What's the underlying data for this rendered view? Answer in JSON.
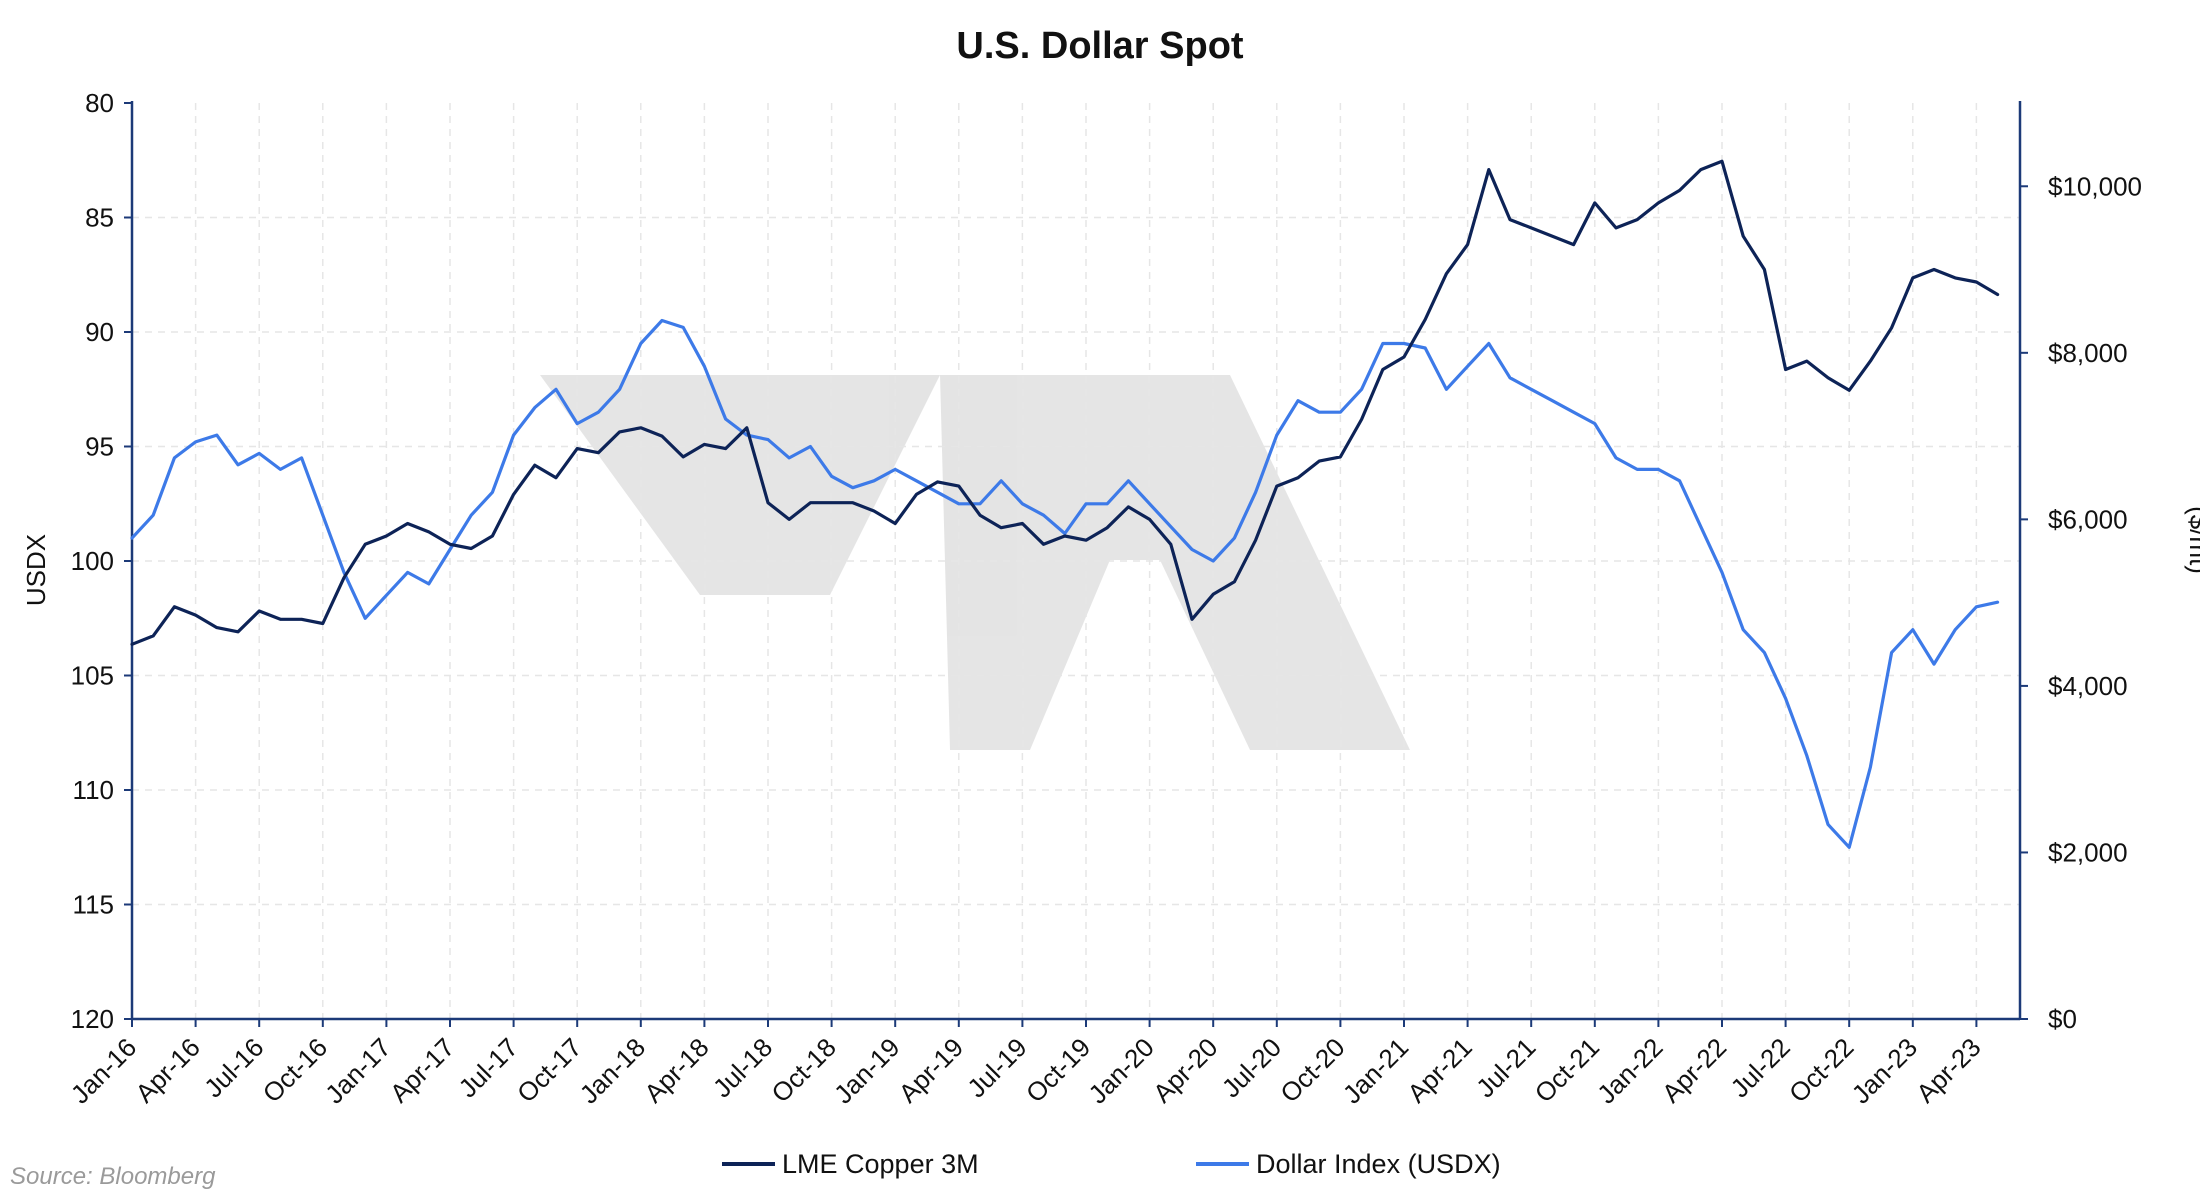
{
  "chart_data": {
    "type": "line",
    "title": "U.S. Dollar Spot",
    "ylabel": "USDX",
    "y2label": "($/mt)",
    "source": "Source: Bloomberg",
    "x_start": "2016-01",
    "x_end": "2023-05",
    "xticks": [
      "Jan-16",
      "Apr-16",
      "Jul-16",
      "Oct-16",
      "Jan-17",
      "Apr-17",
      "Jul-17",
      "Oct-17",
      "Jan-18",
      "Apr-18",
      "Jul-18",
      "Oct-18",
      "Jan-19",
      "Apr-19",
      "Jul-19",
      "Oct-19",
      "Jan-20",
      "Apr-20",
      "Jul-20",
      "Oct-20",
      "Jan-21",
      "Apr-21",
      "Jul-21",
      "Oct-21",
      "Jan-22",
      "Apr-22",
      "Jul-22",
      "Oct-22",
      "Jan-23",
      "Apr-23"
    ],
    "y_left": {
      "min": 80,
      "max": 120,
      "inverted": true,
      "ticks": [
        "80",
        "85",
        "90",
        "95",
        "100",
        "105",
        "110",
        "115",
        "120"
      ]
    },
    "y_right": {
      "min": 0,
      "max": 11000,
      "ticks": [
        "$0",
        "$2,000",
        "$4,000",
        "$6,000",
        "$8,000",
        "$10,000"
      ]
    },
    "grid": true,
    "legend_position": "bottom",
    "series": [
      {
        "name": "LME Copper 3M",
        "axis": "right",
        "color": "#0d2357",
        "data": [
          [
            "2016-01",
            4500
          ],
          [
            "2016-02",
            4600
          ],
          [
            "2016-03",
            4950
          ],
          [
            "2016-04",
            4850
          ],
          [
            "2016-05",
            4700
          ],
          [
            "2016-06",
            4650
          ],
          [
            "2016-07",
            4900
          ],
          [
            "2016-08",
            4800
          ],
          [
            "2016-09",
            4800
          ],
          [
            "2016-10",
            4750
          ],
          [
            "2016-11",
            5300
          ],
          [
            "2016-12",
            5700
          ],
          [
            "2017-01",
            5800
          ],
          [
            "2017-02",
            5950
          ],
          [
            "2017-03",
            5850
          ],
          [
            "2017-04",
            5700
          ],
          [
            "2017-05",
            5650
          ],
          [
            "2017-06",
            5800
          ],
          [
            "2017-07",
            6300
          ],
          [
            "2017-08",
            6650
          ],
          [
            "2017-09",
            6500
          ],
          [
            "2017-10",
            6850
          ],
          [
            "2017-11",
            6800
          ],
          [
            "2017-12",
            7050
          ],
          [
            "2018-01",
            7100
          ],
          [
            "2018-02",
            7000
          ],
          [
            "2018-03",
            6750
          ],
          [
            "2018-04",
            6900
          ],
          [
            "2018-05",
            6850
          ],
          [
            "2018-06",
            7100
          ],
          [
            "2018-07",
            6200
          ],
          [
            "2018-08",
            6000
          ],
          [
            "2018-09",
            6200
          ],
          [
            "2018-10",
            6200
          ],
          [
            "2018-11",
            6200
          ],
          [
            "2018-12",
            6100
          ],
          [
            "2019-01",
            5950
          ],
          [
            "2019-02",
            6300
          ],
          [
            "2019-03",
            6450
          ],
          [
            "2019-04",
            6400
          ],
          [
            "2019-05",
            6050
          ],
          [
            "2019-06",
            5900
          ],
          [
            "2019-07",
            5950
          ],
          [
            "2019-08",
            5700
          ],
          [
            "2019-09",
            5800
          ],
          [
            "2019-10",
            5750
          ],
          [
            "2019-11",
            5900
          ],
          [
            "2019-12",
            6150
          ],
          [
            "2020-01",
            6000
          ],
          [
            "2020-02",
            5700
          ],
          [
            "2020-03",
            4800
          ],
          [
            "2020-04",
            5100
          ],
          [
            "2020-05",
            5250
          ],
          [
            "2020-06",
            5750
          ],
          [
            "2020-07",
            6400
          ],
          [
            "2020-08",
            6500
          ],
          [
            "2020-09",
            6700
          ],
          [
            "2020-10",
            6750
          ],
          [
            "2020-11",
            7200
          ],
          [
            "2020-12",
            7800
          ],
          [
            "2021-01",
            7950
          ],
          [
            "2021-02",
            8400
          ],
          [
            "2021-03",
            8950
          ],
          [
            "2021-04",
            9300
          ],
          [
            "2021-05",
            10200
          ],
          [
            "2021-06",
            9600
          ],
          [
            "2021-07",
            9500
          ],
          [
            "2021-08",
            9400
          ],
          [
            "2021-09",
            9300
          ],
          [
            "2021-10",
            9800
          ],
          [
            "2021-11",
            9500
          ],
          [
            "2021-12",
            9600
          ],
          [
            "2022-01",
            9800
          ],
          [
            "2022-02",
            9950
          ],
          [
            "2022-03",
            10200
          ],
          [
            "2022-04",
            10300
          ],
          [
            "2022-05",
            9400
          ],
          [
            "2022-06",
            9000
          ],
          [
            "2022-07",
            7800
          ],
          [
            "2022-08",
            7900
          ],
          [
            "2022-09",
            7700
          ],
          [
            "2022-10",
            7550
          ],
          [
            "2022-11",
            7900
          ],
          [
            "2022-12",
            8300
          ],
          [
            "2023-01",
            8900
          ],
          [
            "2023-02",
            9000
          ],
          [
            "2023-03",
            8900
          ],
          [
            "2023-04",
            8850
          ],
          [
            "2023-05",
            8700
          ]
        ]
      },
      {
        "name": "Dollar Index (USDX)",
        "axis": "left",
        "color": "#3d7ae8",
        "data": [
          [
            "2016-01",
            99.0
          ],
          [
            "2016-02",
            98.0
          ],
          [
            "2016-03",
            95.5
          ],
          [
            "2016-04",
            94.8
          ],
          [
            "2016-05",
            94.5
          ],
          [
            "2016-06",
            95.8
          ],
          [
            "2016-07",
            95.3
          ],
          [
            "2016-08",
            96.0
          ],
          [
            "2016-09",
            95.5
          ],
          [
            "2016-10",
            98.0
          ],
          [
            "2016-11",
            100.5
          ],
          [
            "2016-12",
            102.5
          ],
          [
            "2017-01",
            101.5
          ],
          [
            "2017-02",
            100.5
          ],
          [
            "2017-03",
            101.0
          ],
          [
            "2017-04",
            99.5
          ],
          [
            "2017-05",
            98.0
          ],
          [
            "2017-06",
            97.0
          ],
          [
            "2017-07",
            94.5
          ],
          [
            "2017-08",
            93.3
          ],
          [
            "2017-09",
            92.5
          ],
          [
            "2017-10",
            94.0
          ],
          [
            "2017-11",
            93.5
          ],
          [
            "2017-12",
            92.5
          ],
          [
            "2018-01",
            90.5
          ],
          [
            "2018-02",
            89.5
          ],
          [
            "2018-03",
            89.8
          ],
          [
            "2018-04",
            91.5
          ],
          [
            "2018-05",
            93.8
          ],
          [
            "2018-06",
            94.5
          ],
          [
            "2018-07",
            94.7
          ],
          [
            "2018-08",
            95.5
          ],
          [
            "2018-09",
            95.0
          ],
          [
            "2018-10",
            96.3
          ],
          [
            "2018-11",
            96.8
          ],
          [
            "2018-12",
            96.5
          ],
          [
            "2019-01",
            96.0
          ],
          [
            "2019-02",
            96.5
          ],
          [
            "2019-03",
            97.0
          ],
          [
            "2019-04",
            97.5
          ],
          [
            "2019-05",
            97.5
          ],
          [
            "2019-06",
            96.5
          ],
          [
            "2019-07",
            97.5
          ],
          [
            "2019-08",
            98.0
          ],
          [
            "2019-09",
            98.8
          ],
          [
            "2019-10",
            97.5
          ],
          [
            "2019-11",
            97.5
          ],
          [
            "2019-12",
            96.5
          ],
          [
            "2020-01",
            97.5
          ],
          [
            "2020-02",
            98.5
          ],
          [
            "2020-03",
            99.5
          ],
          [
            "2020-04",
            100.0
          ],
          [
            "2020-05",
            99.0
          ],
          [
            "2020-06",
            97.0
          ],
          [
            "2020-07",
            94.5
          ],
          [
            "2020-08",
            93.0
          ],
          [
            "2020-09",
            93.5
          ],
          [
            "2020-10",
            93.5
          ],
          [
            "2020-11",
            92.5
          ],
          [
            "2020-12",
            90.5
          ],
          [
            "2021-01",
            90.5
          ],
          [
            "2021-02",
            90.7
          ],
          [
            "2021-03",
            92.5
          ],
          [
            "2021-04",
            91.5
          ],
          [
            "2021-05",
            90.5
          ],
          [
            "2021-06",
            92.0
          ],
          [
            "2021-07",
            92.5
          ],
          [
            "2021-08",
            93.0
          ],
          [
            "2021-09",
            93.5
          ],
          [
            "2021-10",
            94.0
          ],
          [
            "2021-11",
            95.5
          ],
          [
            "2021-12",
            96.0
          ],
          [
            "2022-01",
            96.0
          ],
          [
            "2022-02",
            96.5
          ],
          [
            "2022-03",
            98.5
          ],
          [
            "2022-04",
            100.5
          ],
          [
            "2022-05",
            103.0
          ],
          [
            "2022-06",
            104.0
          ],
          [
            "2022-07",
            106.0
          ],
          [
            "2022-08",
            108.5
          ],
          [
            "2022-09",
            111.5
          ],
          [
            "2022-10",
            112.5
          ],
          [
            "2022-11",
            109.0
          ],
          [
            "2022-12",
            104.0
          ],
          [
            "2023-01",
            103.0
          ],
          [
            "2023-02",
            104.5
          ],
          [
            "2023-03",
            103.0
          ],
          [
            "2023-04",
            102.0
          ],
          [
            "2023-05",
            101.8
          ]
        ]
      }
    ]
  }
}
